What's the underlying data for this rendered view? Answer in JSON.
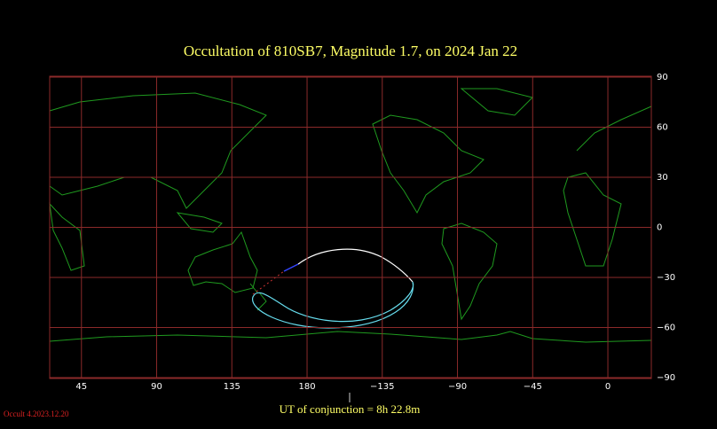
{
  "header": {
    "title": "Occultation  of  810SB7,      Magnitude 1.7,   on  2024 Jan 22"
  },
  "map": {
    "lon_ticks": [
      45,
      90,
      135,
      180,
      {
        "value": -135,
        "label": "−135"
      },
      {
        "value": -90,
        "label": "−90"
      },
      {
        "value": -45,
        "label": "−45"
      },
      0
    ],
    "lat_ticks": [
      90,
      60,
      30,
      0,
      {
        "value": -30,
        "label": "−30"
      },
      {
        "value": -60,
        "label": "−60"
      },
      {
        "value": -90,
        "label": "−90"
      }
    ]
  },
  "footer": {
    "conjunction": "UT of conjunction =  8h 22.8m",
    "version": "Occult 4.2023.12.20"
  }
}
